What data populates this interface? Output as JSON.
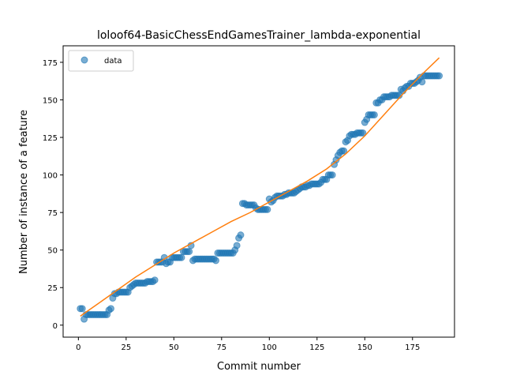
{
  "chart_data": {
    "type": "scatter",
    "title": "loloof64-BasicChessEndGamesTrainer_lambda-exponential",
    "xlabel": "Commit number",
    "ylabel": "Number of instance of a feature",
    "xlim": [
      -8,
      197
    ],
    "ylim": [
      -8,
      186
    ],
    "xticks": [
      0,
      25,
      50,
      75,
      100,
      125,
      150,
      175
    ],
    "yticks": [
      0,
      25,
      50,
      75,
      100,
      125,
      150,
      175
    ],
    "grid": false,
    "legend_position": "top-left",
    "colors": {
      "data": "#1f77b4",
      "fit": "#ff7f0e"
    },
    "series": [
      {
        "name": "data",
        "kind": "scatter",
        "x": [
          1,
          2,
          3,
          4,
          5,
          6,
          7,
          8,
          9,
          10,
          11,
          12,
          13,
          14,
          15,
          16,
          17,
          18,
          19,
          20,
          21,
          22,
          23,
          24,
          25,
          26,
          27,
          28,
          29,
          30,
          31,
          32,
          33,
          34,
          35,
          36,
          37,
          38,
          39,
          40,
          41,
          42,
          43,
          44,
          45,
          46,
          47,
          48,
          49,
          50,
          51,
          52,
          53,
          54,
          55,
          56,
          57,
          58,
          59,
          60,
          61,
          62,
          63,
          64,
          65,
          66,
          67,
          68,
          69,
          70,
          71,
          72,
          73,
          74,
          75,
          76,
          77,
          78,
          79,
          80,
          81,
          82,
          83,
          84,
          85,
          86,
          87,
          88,
          89,
          90,
          91,
          92,
          93,
          94,
          95,
          96,
          97,
          98,
          99,
          100,
          101,
          102,
          103,
          104,
          105,
          106,
          107,
          108,
          109,
          110,
          111,
          112,
          113,
          114,
          115,
          116,
          117,
          118,
          119,
          120,
          121,
          122,
          123,
          124,
          125,
          126,
          127,
          128,
          129,
          130,
          131,
          132,
          133,
          134,
          135,
          136,
          137,
          138,
          139,
          140,
          141,
          142,
          143,
          144,
          145,
          146,
          147,
          148,
          149,
          150,
          151,
          152,
          153,
          154,
          155,
          156,
          157,
          158,
          159,
          160,
          161,
          162,
          163,
          164,
          165,
          166,
          167,
          168,
          169,
          170,
          171,
          172,
          173,
          174,
          175,
          176,
          177,
          178,
          179,
          180,
          181,
          182,
          183,
          184,
          185,
          186,
          187,
          188,
          189
        ],
        "y": [
          11,
          11,
          4,
          7,
          7,
          7,
          7,
          7,
          7,
          7,
          7,
          7,
          7,
          7,
          7,
          10,
          11,
          18,
          21,
          21,
          22,
          22,
          22,
          22,
          22,
          22,
          25,
          26,
          27,
          28,
          28,
          28,
          28,
          28,
          28,
          29,
          29,
          29,
          29,
          30,
          42,
          42,
          42,
          42,
          45,
          41,
          42,
          42,
          45,
          45,
          45,
          45,
          45,
          45,
          49,
          49,
          49,
          49,
          53,
          43,
          44,
          44,
          44,
          44,
          44,
          44,
          44,
          44,
          44,
          44,
          44,
          43,
          48,
          48,
          48,
          48,
          48,
          48,
          48,
          48,
          48,
          50,
          53,
          58,
          60,
          81,
          81,
          80,
          80,
          80,
          80,
          80,
          78,
          77,
          77,
          77,
          77,
          77,
          77,
          84,
          82,
          83,
          85,
          86,
          86,
          86,
          86,
          87,
          87,
          88,
          88,
          88,
          88,
          89,
          90,
          91,
          92,
          92,
          92,
          93,
          93,
          94,
          94,
          94,
          94,
          94,
          95,
          97,
          97,
          97,
          100,
          100,
          100,
          107,
          110,
          113,
          115,
          116,
          116,
          122,
          123,
          126,
          127,
          127,
          127,
          128,
          128,
          128,
          128,
          135,
          137,
          140,
          140,
          140,
          140,
          148,
          148,
          150,
          150,
          152,
          152,
          152,
          152,
          153,
          153,
          153,
          153,
          153,
          157,
          156,
          158,
          159,
          159,
          161,
          161,
          161,
          162,
          163,
          165,
          162,
          166,
          166,
          166,
          166,
          166,
          166,
          166,
          166,
          166
        ]
      },
      {
        "kind": "line",
        "x": [
          1,
          10,
          20,
          30,
          40,
          50,
          60,
          70,
          80,
          90,
          100,
          110,
          120,
          130,
          140,
          150,
          160,
          170,
          180,
          189
        ],
        "y": [
          6,
          14,
          23,
          32,
          40,
          48,
          55,
          62,
          69,
          75,
          82,
          89,
          96,
          104,
          114,
          126,
          140,
          154,
          167,
          178
        ]
      }
    ]
  }
}
